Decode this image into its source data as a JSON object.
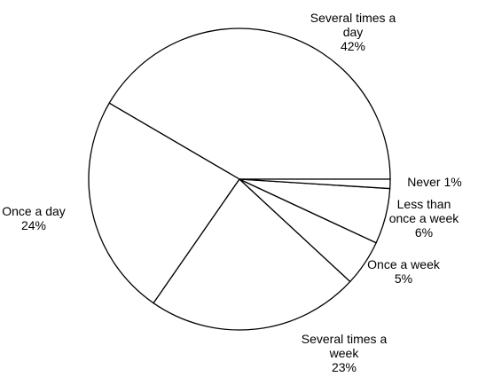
{
  "chart_data": {
    "type": "pie",
    "categories": [
      "Several times a day",
      "Once a day",
      "Several times a week",
      "Once a week",
      "Less than once a week",
      "Never"
    ],
    "values": [
      42,
      24,
      23,
      5,
      6,
      1
    ],
    "value_labels": [
      "42%",
      "24%",
      "23%",
      "5%",
      "6%",
      "1%"
    ],
    "color": "#ffffff"
  }
}
